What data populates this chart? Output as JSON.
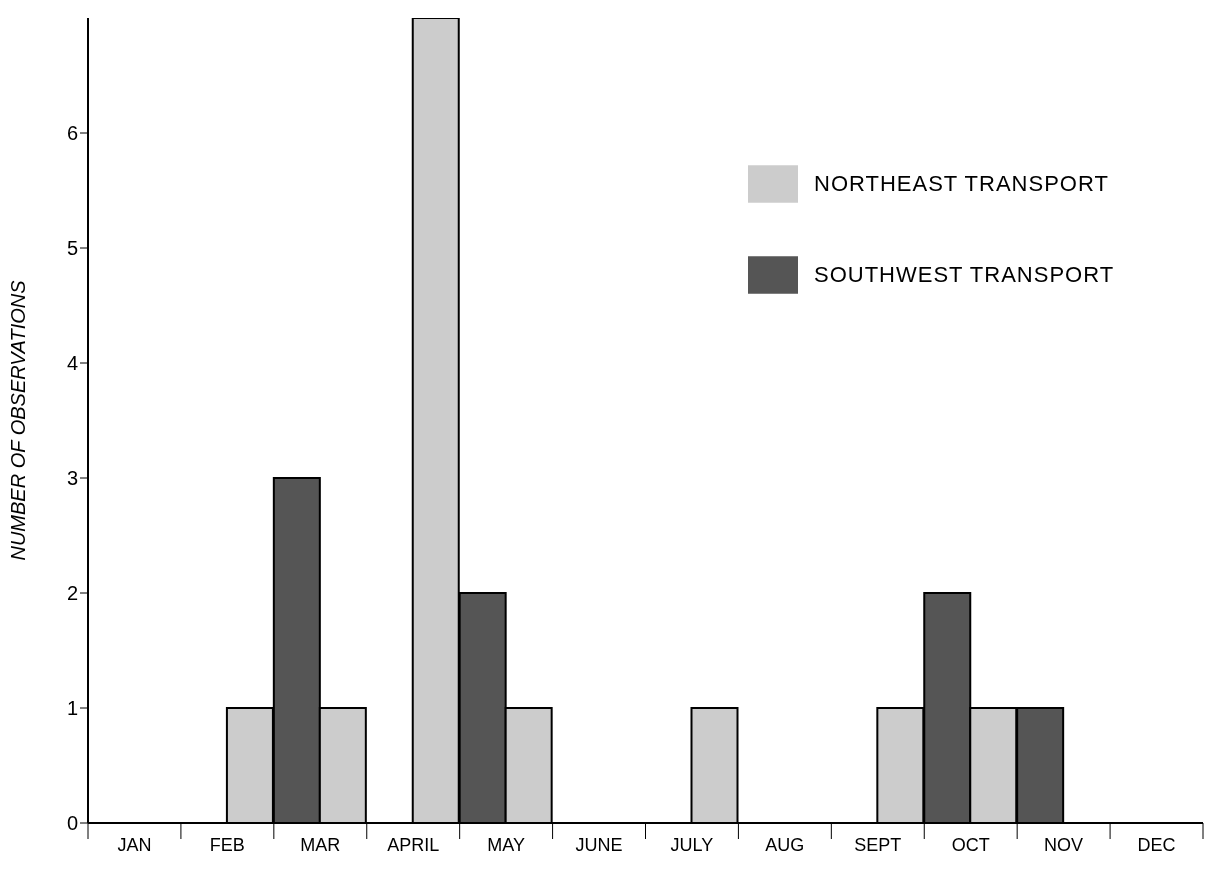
{
  "chart_data": {
    "type": "bar",
    "ylabel": "NUMBER OF OBSERVATIONS",
    "categories": [
      "JAN",
      "FEB",
      "MAR",
      "APRIL",
      "MAY",
      "JUNE",
      "JULY",
      "AUG",
      "SEPT",
      "OCT",
      "NOV",
      "DEC"
    ],
    "series": [
      {
        "name": "SOUTHWEST TRANSPORT",
        "color": "#555555",
        "values": [
          0,
          0,
          3,
          0,
          2,
          0,
          0,
          0,
          0,
          2,
          1,
          0
        ]
      },
      {
        "name": "NORTHEAST TRANSPORT",
        "color": "#cccccc",
        "values": [
          0,
          1,
          1,
          7,
          1,
          0,
          1,
          0,
          1,
          1,
          0,
          0
        ]
      }
    ],
    "ylim": [
      0,
      7
    ],
    "yticks": [
      0,
      1,
      2,
      3,
      4,
      5,
      6
    ],
    "grid": false,
    "legend": "top right"
  }
}
